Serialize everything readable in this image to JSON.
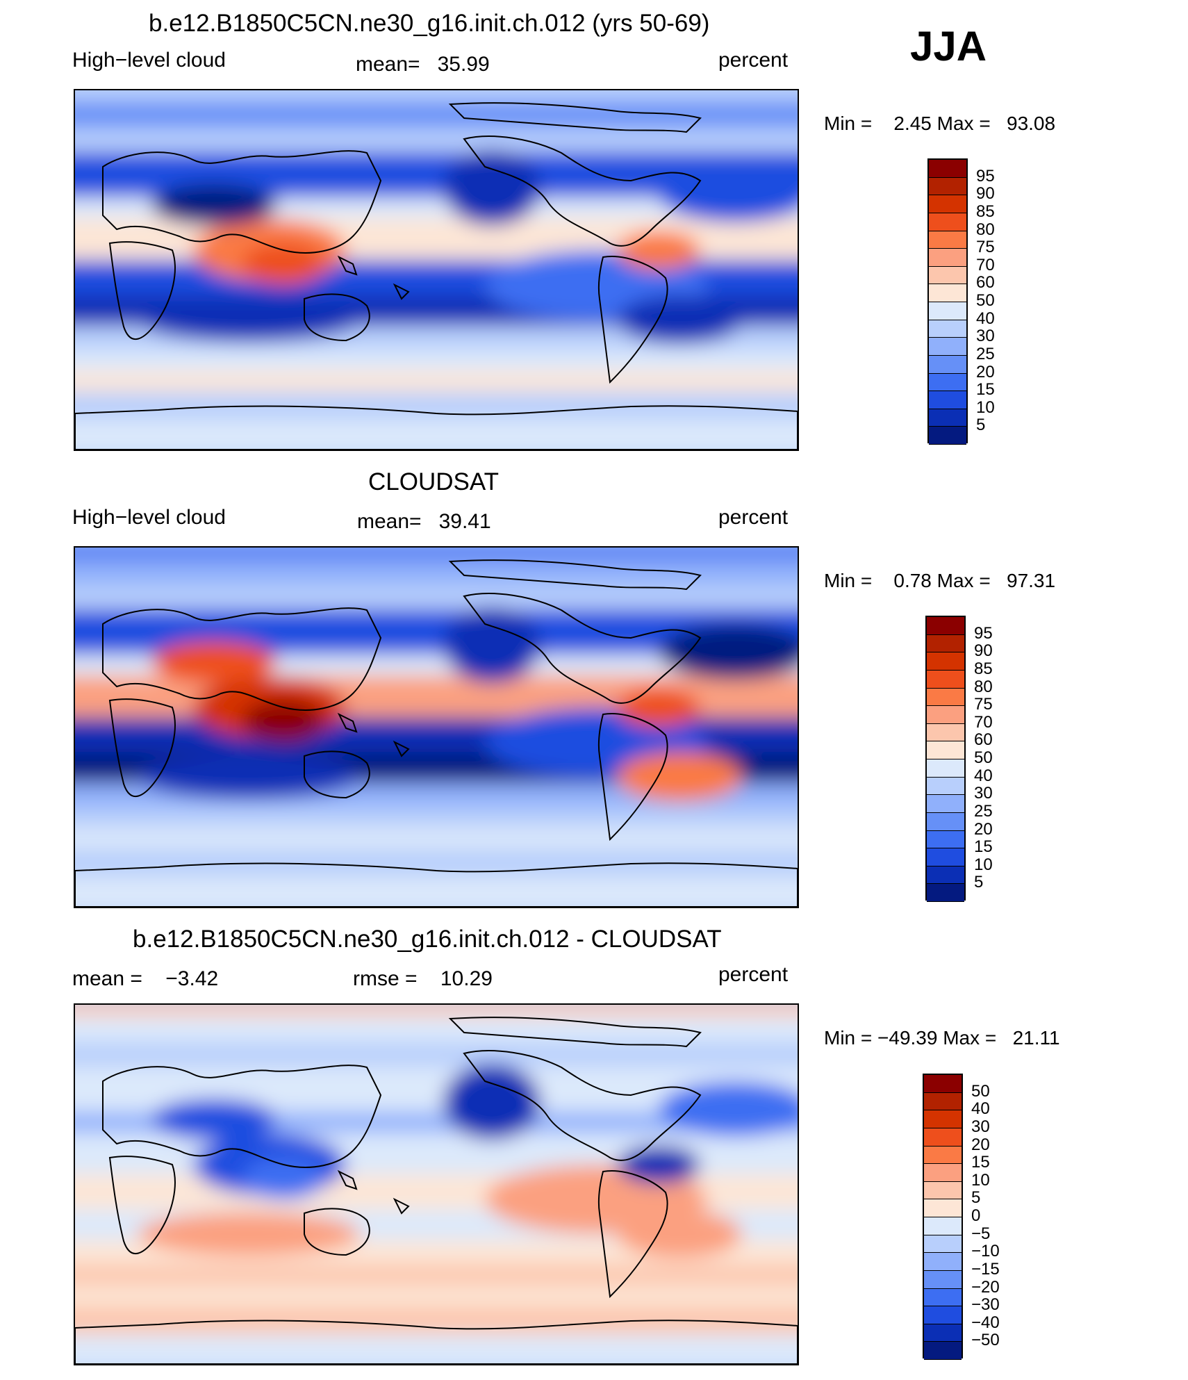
{
  "figure": {
    "season": "JJA"
  },
  "panels": [
    {
      "title": "b.e12.B1850C5CN.ne30_g16.init.ch.012 (yrs 50-69)",
      "left_label": "High−level cloud",
      "center_label": "mean=   35.99",
      "right_label": "percent",
      "range_label": "Min =    2.45 Max =   93.08",
      "colorbar": {
        "labels": [
          "95",
          "90",
          "85",
          "80",
          "75",
          "70",
          "60",
          "50",
          "40",
          "30",
          "25",
          "20",
          "15",
          "10",
          "5"
        ],
        "colors": [
          "#8b0000",
          "#b22200",
          "#d43300",
          "#ee4f1c",
          "#fa7a45",
          "#fba080",
          "#fcc6ad",
          "#fde6d6",
          "#dce9fb",
          "#b8cffc",
          "#90b0fb",
          "#6690f7",
          "#3d6ef2",
          "#1f4de0",
          "#0b2fb5",
          "#041a80"
        ]
      },
      "map_bands": [
        {
          "color": "#b8cffc"
        },
        {
          "color": "#6690f7"
        },
        {
          "color": "#b8cffc"
        },
        {
          "color": "#1f4de0"
        },
        {
          "color": "#dce9fb"
        },
        {
          "color": "#fde6d6"
        },
        {
          "color": "#1f4de0"
        },
        {
          "color": "#0b2fb5"
        },
        {
          "color": "#b8cffc"
        },
        {
          "color": "#dce9fb"
        },
        {
          "color": "#fde6d6"
        },
        {
          "color": "#b8cffc"
        },
        {
          "color": "#dce9fb"
        }
      ],
      "map_blobs": [
        {
          "color": "#fa7a45"
        },
        {
          "color": "#ee4f1c"
        },
        {
          "color": "#041a80"
        },
        {
          "color": "#0b2fb5"
        },
        {
          "color": "#3d6ef2"
        },
        {
          "color": "#0b2fb5"
        },
        {
          "color": "#1f4de0"
        },
        {
          "color": "#fa7a45"
        },
        {
          "color": "#0b2fb5"
        }
      ]
    },
    {
      "title": "CLOUDSAT",
      "left_label": "High−level cloud",
      "center_label": "mean=   39.41",
      "right_label": "percent",
      "range_label": "Min =    0.78 Max =   97.31",
      "colorbar": {
        "labels": [
          "95",
          "90",
          "85",
          "80",
          "75",
          "70",
          "60",
          "50",
          "40",
          "30",
          "25",
          "20",
          "15",
          "10",
          "5"
        ],
        "colors": [
          "#8b0000",
          "#b22200",
          "#d43300",
          "#ee4f1c",
          "#fa7a45",
          "#fba080",
          "#fcc6ad",
          "#fde6d6",
          "#dce9fb",
          "#b8cffc",
          "#90b0fb",
          "#6690f7",
          "#3d6ef2",
          "#1f4de0",
          "#0b2fb5",
          "#041a80"
        ]
      },
      "map_bands": [
        {
          "color": "#3d6ef2"
        },
        {
          "color": "#90b0fb"
        },
        {
          "color": "#b8cffc"
        },
        {
          "color": "#1f4de0"
        },
        {
          "color": "#dce9fb"
        },
        {
          "color": "#fba080"
        },
        {
          "color": "#0b2fb5"
        },
        {
          "color": "#041a80"
        },
        {
          "color": "#90b0fb"
        },
        {
          "color": "#b8cffc"
        },
        {
          "color": "#dce9fb"
        },
        {
          "color": "#b8cffc"
        },
        {
          "color": "#dce9fb"
        }
      ],
      "map_blobs": [
        {
          "color": "#d43300"
        },
        {
          "color": "#8b0000"
        },
        {
          "color": "#ee4f1c"
        },
        {
          "color": "#0b2fb5"
        },
        {
          "color": "#1f4de0"
        },
        {
          "color": "#0b2fb5"
        },
        {
          "color": "#041a80"
        },
        {
          "color": "#ee4f1c"
        },
        {
          "color": "#fa7a45"
        }
      ]
    },
    {
      "title": "b.e12.B1850C5CN.ne30_g16.init.ch.012 - CLOUDSAT",
      "left_label": "mean =    −3.42",
      "center_label": "rmse =    10.29",
      "right_label": "percent",
      "range_label": "Min = −49.39 Max =   21.11",
      "colorbar": {
        "labels": [
          "50",
          "40",
          "30",
          "20",
          "15",
          "10",
          "5",
          "0",
          "−5",
          "−10",
          "−15",
          "−20",
          "−30",
          "−40",
          "−50"
        ],
        "colors": [
          "#8b0000",
          "#b22200",
          "#d43300",
          "#ee4f1c",
          "#fa7a45",
          "#fba080",
          "#fcc6ad",
          "#fde6d6",
          "#dce9fb",
          "#b8cffc",
          "#90b0fb",
          "#6690f7",
          "#3d6ef2",
          "#1f4de0",
          "#0b2fb5",
          "#041a80"
        ]
      },
      "map_bands": [
        {
          "color": "#fcc6ad"
        },
        {
          "color": "#dce9fb"
        },
        {
          "color": "#b8cffc"
        },
        {
          "color": "#dce9fb"
        },
        {
          "color": "#90b0fb"
        },
        {
          "color": "#dce9fb"
        },
        {
          "color": "#fde6d6"
        },
        {
          "color": "#dce9fb"
        },
        {
          "color": "#fde6d6"
        },
        {
          "color": "#fcc6ad"
        },
        {
          "color": "#fde6d6"
        },
        {
          "color": "#fcc6ad"
        },
        {
          "color": "#dce9fb"
        }
      ],
      "map_blobs": [
        {
          "color": "#1f4de0"
        },
        {
          "color": "#3d6ef2"
        },
        {
          "color": "#1f4de0"
        },
        {
          "color": "#0b2fb5"
        },
        {
          "color": "#fba080"
        },
        {
          "color": "#fba080"
        },
        {
          "color": "#3d6ef2"
        },
        {
          "color": "#0b2fb5"
        },
        {
          "color": "#fba080"
        }
      ]
    }
  ]
}
